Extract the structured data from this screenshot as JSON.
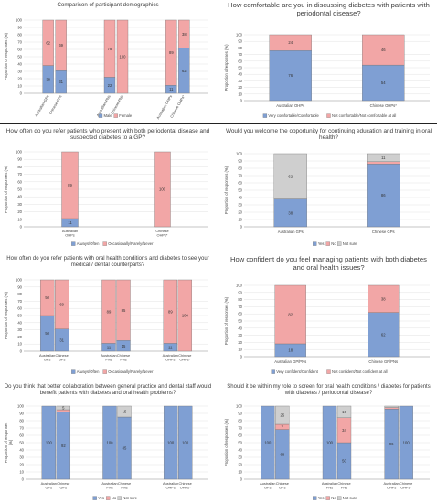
{
  "colors": {
    "blue": "#7f9fd3",
    "pink": "#f2a6a6",
    "grey": "#cfcfcf",
    "border": "#6f6f6f"
  },
  "ylabel_pct": "Proportion of responses (%)",
  "ylabel_pct_alt": "Proportion ofresponses (%)",
  "ylabel_pct_br": "Proportion of responses\n(%)",
  "chart_data": [
    {
      "type": "bar",
      "title": "Comparison of participant demographics",
      "ylabel": "Proportion of responses (%)",
      "ylim": [
        0,
        100
      ],
      "yticks": [
        "0",
        "10",
        "20",
        "30",
        "40",
        "50",
        "60",
        "70",
        "80",
        "90",
        "100"
      ],
      "groups": [
        {
          "labels": [
            "Australian GPs",
            "Chinese GPs"
          ],
          "rotated": true
        },
        {
          "labels": [
            "Australian PNs",
            "Chinese PNs"
          ],
          "rotated": true
        },
        {
          "labels": [
            "Australian OHPs",
            "Chinese OHPs*"
          ],
          "rotated": true
        }
      ],
      "series": [
        {
          "name": "Male",
          "color": "blue",
          "values": [
            [
              38,
              31
            ],
            [
              22,
              0
            ],
            [
              11,
              62
            ]
          ]
        },
        {
          "name": "Female",
          "color": "pink",
          "values": [
            [
              62,
              69
            ],
            [
              78,
              100
            ],
            [
              89,
              38
            ]
          ]
        }
      ]
    },
    {
      "type": "bar",
      "title": "How comfortable are you in discussing diabetes with patients with periodontal disease?",
      "ylabel": "Proportion ofresponses (%)",
      "ylim": [
        0,
        100
      ],
      "yticks": [
        "0",
        "10",
        "20",
        "30",
        "40",
        "50",
        "60",
        "70",
        "80",
        "90",
        "100"
      ],
      "groups": [
        {
          "labels": [
            "Australian OHPs"
          ],
          "rotated": false
        },
        {
          "labels": [
            "Chinese OHPs*"
          ],
          "rotated": false
        }
      ],
      "series": [
        {
          "name": "Very comfortable/Comfortable",
          "color": "blue",
          "values": [
            [
              76
            ],
            [
              54
            ]
          ]
        },
        {
          "name": "Not comfortable/Not comfortable at all",
          "color": "pink",
          "values": [
            [
              24
            ],
            [
              46
            ]
          ]
        }
      ]
    },
    {
      "type": "bar",
      "title": "How often do you refer patients who present with both periodontal disease and suspected diabetes to a GP?",
      "ylabel": "Proportion of responses (%)",
      "ylim": [
        0,
        100
      ],
      "yticks": [
        "0",
        "10",
        "20",
        "30",
        "40",
        "50",
        "60",
        "70",
        "80",
        "90",
        "100"
      ],
      "groups": [
        {
          "labels": [
            "Australian OHPs"
          ],
          "rotated": false
        },
        {
          "labels": [
            "Chinese OHPs*"
          ],
          "rotated": false
        }
      ],
      "series": [
        {
          "name": "Always/Often",
          "color": "blue",
          "values": [
            [
              11
            ],
            [
              0
            ]
          ]
        },
        {
          "name": "Occasionally/Rarely/Never",
          "color": "pink",
          "values": [
            [
              89
            ],
            [
              100
            ]
          ]
        }
      ]
    },
    {
      "type": "bar",
      "title": "Would you welcome the opportunity for continuing education and training in oral health?",
      "ylabel": "Proportion of responses (%)",
      "ylim": [
        0,
        100
      ],
      "yticks": [
        "0",
        "10",
        "20",
        "30",
        "40",
        "50",
        "60",
        "70",
        "80",
        "90",
        "100"
      ],
      "groups": [
        {
          "labels": [
            "Australian GPs"
          ],
          "rotated": false
        },
        {
          "labels": [
            "Chinese GPs"
          ],
          "rotated": false
        }
      ],
      "series": [
        {
          "name": "Yes",
          "color": "blue",
          "values": [
            [
              38
            ],
            [
              86
            ]
          ]
        },
        {
          "name": "No",
          "color": "pink",
          "values": [
            [
              0
            ],
            [
              3
            ]
          ]
        },
        {
          "name": "Not sure",
          "color": "grey",
          "values": [
            [
              62
            ],
            [
              11
            ]
          ]
        }
      ],
      "value_labels": [
        [
          "38",
          "",
          "62"
        ],
        [
          "86",
          "3",
          "11"
        ]
      ]
    },
    {
      "type": "bar",
      "title": "How often do you refer patients with oral health conditions and diabetes to see your medical / dental counterparts?",
      "ylabel": "Proportion of responses (%)",
      "ylim": [
        0,
        100
      ],
      "yticks": [
        "0",
        "10",
        "20",
        "30",
        "40",
        "50",
        "60",
        "70",
        "80",
        "90",
        "100"
      ],
      "groups": [
        {
          "labels": [
            "Australian GPs",
            "Chinese GPs"
          ],
          "rotated": false
        },
        {
          "labels": [
            "Australian PNs",
            "Chinese PNs"
          ],
          "rotated": false
        },
        {
          "labels": [
            "Australian OHPs",
            "Chinese OHPs*"
          ],
          "rotated": false
        }
      ],
      "series": [
        {
          "name": "Always/Often",
          "color": "blue",
          "values": [
            [
              50,
              31
            ],
            [
              11,
              15
            ],
            [
              11,
              0
            ]
          ]
        },
        {
          "name": "Occasionally/Rarely/Never",
          "color": "pink",
          "values": [
            [
              50,
              69
            ],
            [
              89,
              85
            ],
            [
              89,
              100
            ]
          ]
        }
      ]
    },
    {
      "type": "bar",
      "title": "How confident do you feel managing patients with both diabetes and oral health issues?",
      "ylabel": "Proportion of responses (%)",
      "ylim": [
        0,
        100
      ],
      "yticks": [
        "0",
        "10",
        "20",
        "30",
        "40",
        "50",
        "60",
        "70",
        "80",
        "90",
        "100"
      ],
      "groups": [
        {
          "labels": [
            "Australian GP/PNs"
          ],
          "rotated": false
        },
        {
          "labels": [
            "Chinese GP/PNs"
          ],
          "rotated": false
        }
      ],
      "series": [
        {
          "name": "Very confident/Confident",
          "color": "blue",
          "values": [
            [
              18
            ],
            [
              62
            ]
          ]
        },
        {
          "name": "Not confident/Not confident at all",
          "color": "pink",
          "values": [
            [
              82
            ],
            [
              38
            ]
          ]
        }
      ]
    },
    {
      "type": "bar",
      "title": "Do you think that better collaboration between general practice and dental staff would benefit patients with diabetes and oral health problems?",
      "ylabel": "Proportion of responses\n(%)",
      "ylim": [
        0,
        100
      ],
      "yticks": [
        "0",
        "10",
        "20",
        "30",
        "40",
        "50",
        "60",
        "70",
        "80",
        "90",
        "100"
      ],
      "groups": [
        {
          "labels": [
            "Australian GPs",
            "Chinese GPs"
          ],
          "rotated": false
        },
        {
          "labels": [
            "Australian PNs",
            "Chinese PNs"
          ],
          "rotated": false
        },
        {
          "labels": [
            "Australian OHPs",
            "Chinese OHPs*"
          ],
          "rotated": false
        }
      ],
      "series": [
        {
          "name": "Yes",
          "color": "blue",
          "values": [
            [
              100,
              92
            ],
            [
              100,
              85
            ],
            [
              100,
              100
            ]
          ]
        },
        {
          "name": "No",
          "color": "pink",
          "values": [
            [
              0,
              3
            ],
            [
              0,
              0
            ],
            [
              0,
              0
            ]
          ]
        },
        {
          "name": "Not sure",
          "color": "grey",
          "values": [
            [
              0,
              5
            ],
            [
              0,
              15
            ],
            [
              0,
              0
            ]
          ]
        }
      ],
      "value_labels": [
        [
          "100",
          "",
          ""
        ],
        [
          "92",
          "3",
          "5"
        ],
        [
          "100",
          "",
          ""
        ],
        [
          "85",
          "",
          "15"
        ],
        [
          "100",
          "",
          ""
        ],
        [
          "100",
          "",
          ""
        ]
      ]
    },
    {
      "type": "bar",
      "title": "Should it be within my role to screen for oral health conditions / diabetes for patients with diabetes / periodontal disease?",
      "ylabel": "Proportion of responses (%)",
      "ylim": [
        0,
        100
      ],
      "yticks": [
        "0",
        "10",
        "20",
        "30",
        "40",
        "50",
        "60",
        "70",
        "80",
        "90",
        "100"
      ],
      "groups": [
        {
          "labels": [
            "Australian GPs",
            "Chinese GPs"
          ],
          "rotated": false
        },
        {
          "labels": [
            "Australian PNs",
            "Chinese PNs"
          ],
          "rotated": false
        },
        {
          "labels": [
            "Australian OHPs",
            "Chinese OHPs*"
          ],
          "rotated": false
        }
      ],
      "series": [
        {
          "name": "Yes",
          "color": "blue",
          "values": [
            [
              100,
              68
            ],
            [
              100,
              50
            ],
            [
              96,
              100
            ]
          ]
        },
        {
          "name": "No",
          "color": "pink",
          "values": [
            [
              0,
              7
            ],
            [
              0,
              34
            ],
            [
              2,
              0
            ]
          ]
        },
        {
          "name": "Not sure",
          "color": "grey",
          "values": [
            [
              0,
              25
            ],
            [
              0,
              16
            ],
            [
              2,
              0
            ]
          ]
        }
      ],
      "value_labels": [
        [
          "100",
          "",
          ""
        ],
        [
          "68",
          "7",
          "25"
        ],
        [
          "100",
          "",
          ""
        ],
        [
          "50",
          "34",
          "16"
        ],
        [
          "96",
          "",
          ""
        ],
        [
          "100",
          "",
          ""
        ]
      ]
    }
  ]
}
